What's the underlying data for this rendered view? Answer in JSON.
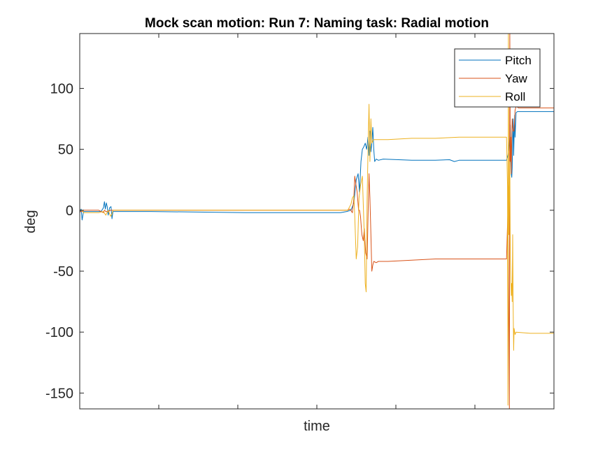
{
  "chart_data": {
    "type": "line",
    "title": "Mock scan motion: Run 7: Naming task: Radial motion",
    "xlabel": "time",
    "ylabel": "deg",
    "xlim": [
      0,
      1
    ],
    "ylim": [
      -163,
      145
    ],
    "yticks": [
      -150,
      -100,
      -50,
      0,
      50,
      100
    ],
    "xtick_count": 5,
    "x_tick_labels_shown": false,
    "grid": false,
    "legend_position": "top-right",
    "series": [
      {
        "name": "Pitch",
        "color": "#0072BD",
        "points": [
          [
            0.0,
            -2
          ],
          [
            0.003,
            1
          ],
          [
            0.005,
            -8
          ],
          [
            0.008,
            -1
          ],
          [
            0.012,
            -1
          ],
          [
            0.03,
            -1
          ],
          [
            0.045,
            -1
          ],
          [
            0.05,
            2
          ],
          [
            0.052,
            7
          ],
          [
            0.054,
            1
          ],
          [
            0.056,
            6
          ],
          [
            0.058,
            3
          ],
          [
            0.06,
            -4
          ],
          [
            0.063,
            2
          ],
          [
            0.066,
            3
          ],
          [
            0.068,
            -7
          ],
          [
            0.07,
            -1
          ],
          [
            0.15,
            -1
          ],
          [
            0.25,
            -1.5
          ],
          [
            0.35,
            -2
          ],
          [
            0.45,
            -2
          ],
          [
            0.55,
            -2
          ],
          [
            0.563,
            -1
          ],
          [
            0.572,
            0
          ],
          [
            0.578,
            6
          ],
          [
            0.583,
            25
          ],
          [
            0.587,
            30
          ],
          [
            0.59,
            15
          ],
          [
            0.593,
            40
          ],
          [
            0.596,
            50
          ],
          [
            0.599,
            52
          ],
          [
            0.602,
            55
          ],
          [
            0.605,
            50
          ],
          [
            0.608,
            60
          ],
          [
            0.61,
            45
          ],
          [
            0.612,
            65
          ],
          [
            0.614,
            48
          ],
          [
            0.616,
            55
          ],
          [
            0.618,
            68
          ],
          [
            0.62,
            50
          ],
          [
            0.622,
            40
          ],
          [
            0.625,
            42
          ],
          [
            0.63,
            41
          ],
          [
            0.64,
            42
          ],
          [
            0.7,
            41
          ],
          [
            0.75,
            41
          ],
          [
            0.78,
            41.5
          ],
          [
            0.79,
            40
          ],
          [
            0.8,
            41
          ],
          [
            0.85,
            41
          ],
          [
            0.9,
            41
          ],
          [
            0.903,
            45
          ],
          [
            0.905,
            50
          ],
          [
            0.907,
            60
          ],
          [
            0.908,
            70
          ],
          [
            0.909,
            40
          ],
          [
            0.91,
            30
          ],
          [
            0.911,
            27
          ],
          [
            0.912,
            35
          ],
          [
            0.913,
            60
          ],
          [
            0.914,
            75
          ],
          [
            0.915,
            45
          ],
          [
            0.917,
            78
          ],
          [
            0.918,
            60
          ],
          [
            0.92,
            80
          ],
          [
            0.923,
            81
          ],
          [
            0.93,
            81
          ],
          [
            1.0,
            81
          ]
        ]
      },
      {
        "name": "Yaw",
        "color": "#D95319",
        "points": [
          [
            0.0,
            -1
          ],
          [
            0.005,
            -1
          ],
          [
            0.008,
            0
          ],
          [
            0.04,
            0
          ],
          [
            0.05,
            -2
          ],
          [
            0.052,
            0
          ],
          [
            0.055,
            -1
          ],
          [
            0.06,
            -1
          ],
          [
            0.065,
            0
          ],
          [
            0.15,
            0
          ],
          [
            0.25,
            0
          ],
          [
            0.35,
            0
          ],
          [
            0.45,
            0
          ],
          [
            0.55,
            0
          ],
          [
            0.565,
            0
          ],
          [
            0.57,
            1
          ],
          [
            0.575,
            -2
          ],
          [
            0.578,
            10
          ],
          [
            0.58,
            28
          ],
          [
            0.582,
            22
          ],
          [
            0.585,
            15
          ],
          [
            0.588,
            0
          ],
          [
            0.59,
            0
          ],
          [
            0.592,
            -5
          ],
          [
            0.595,
            -20
          ],
          [
            0.598,
            -25
          ],
          [
            0.6,
            -15
          ],
          [
            0.603,
            -35
          ],
          [
            0.606,
            -40
          ],
          [
            0.608,
            -5
          ],
          [
            0.61,
            30
          ],
          [
            0.612,
            10
          ],
          [
            0.614,
            -20
          ],
          [
            0.616,
            -50
          ],
          [
            0.618,
            -45
          ],
          [
            0.62,
            -42
          ],
          [
            0.625,
            -43
          ],
          [
            0.63,
            -42
          ],
          [
            0.65,
            -42
          ],
          [
            0.7,
            -41
          ],
          [
            0.75,
            -40
          ],
          [
            0.8,
            -40
          ],
          [
            0.85,
            -40
          ],
          [
            0.88,
            -40
          ],
          [
            0.9,
            -40
          ],
          [
            0.903,
            0
          ],
          [
            0.905,
            -100
          ],
          [
            0.906,
            -165
          ],
          [
            0.907,
            145
          ],
          [
            0.908,
            40
          ],
          [
            0.909,
            60
          ],
          [
            0.91,
            30
          ],
          [
            0.911,
            62
          ],
          [
            0.912,
            75
          ],
          [
            0.913,
            68
          ],
          [
            0.914,
            65
          ],
          [
            0.916,
            65
          ],
          [
            0.918,
            82
          ],
          [
            0.92,
            85
          ],
          [
            0.921,
            88
          ],
          [
            0.922,
            85
          ],
          [
            0.925,
            84
          ],
          [
            0.95,
            84
          ],
          [
            1.0,
            84
          ]
        ]
      },
      {
        "name": "Roll",
        "color": "#EDB120",
        "points": [
          [
            0.0,
            0
          ],
          [
            0.005,
            0
          ],
          [
            0.008,
            -2
          ],
          [
            0.04,
            -2
          ],
          [
            0.05,
            -1
          ],
          [
            0.055,
            -4
          ],
          [
            0.06,
            0
          ],
          [
            0.065,
            -5
          ],
          [
            0.068,
            -3
          ],
          [
            0.07,
            0
          ],
          [
            0.15,
            0
          ],
          [
            0.25,
            0
          ],
          [
            0.35,
            0
          ],
          [
            0.45,
            0
          ],
          [
            0.55,
            0
          ],
          [
            0.565,
            0
          ],
          [
            0.568,
            2
          ],
          [
            0.572,
            5
          ],
          [
            0.575,
            10
          ],
          [
            0.578,
            12
          ],
          [
            0.58,
            -5
          ],
          [
            0.583,
            -40
          ],
          [
            0.586,
            -30
          ],
          [
            0.589,
            10
          ],
          [
            0.592,
            20
          ],
          [
            0.596,
            28
          ],
          [
            0.6,
            -20
          ],
          [
            0.602,
            -60
          ],
          [
            0.604,
            -67
          ],
          [
            0.606,
            10
          ],
          [
            0.608,
            50
          ],
          [
            0.61,
            87
          ],
          [
            0.612,
            40
          ],
          [
            0.614,
            75
          ],
          [
            0.616,
            55
          ],
          [
            0.618,
            57
          ],
          [
            0.62,
            58
          ],
          [
            0.65,
            58
          ],
          [
            0.7,
            59
          ],
          [
            0.75,
            59
          ],
          [
            0.8,
            60
          ],
          [
            0.85,
            60
          ],
          [
            0.89,
            60
          ],
          [
            0.9,
            60
          ],
          [
            0.902,
            20
          ],
          [
            0.903,
            -160
          ],
          [
            0.904,
            145
          ],
          [
            0.905,
            -20
          ],
          [
            0.907,
            40
          ],
          [
            0.908,
            -40
          ],
          [
            0.909,
            -55
          ],
          [
            0.91,
            -70
          ],
          [
            0.911,
            -60
          ],
          [
            0.912,
            -75
          ],
          [
            0.913,
            -20
          ],
          [
            0.914,
            -80
          ],
          [
            0.915,
            -115
          ],
          [
            0.916,
            -97
          ],
          [
            0.918,
            -102
          ],
          [
            0.92,
            -100
          ],
          [
            0.95,
            -101
          ],
          [
            1.0,
            -101
          ]
        ]
      }
    ]
  }
}
